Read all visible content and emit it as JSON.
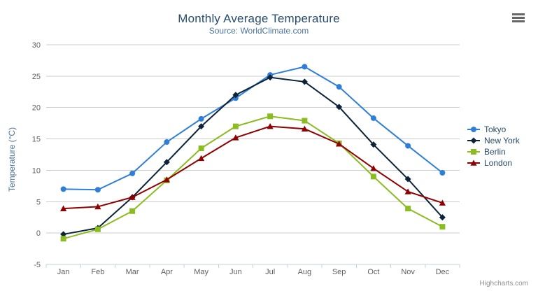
{
  "header": {
    "title": "Monthly Average Temperature",
    "subtitle": "Source: WorldClimate.com"
  },
  "export_menu": {
    "icon": "hamburger-icon"
  },
  "credits": {
    "label": "Highcharts.com"
  },
  "chart_data": {
    "type": "line",
    "title": "Monthly Average Temperature",
    "subtitle": "Source: WorldClimate.com",
    "categories": [
      "Jan",
      "Feb",
      "Mar",
      "Apr",
      "May",
      "Jun",
      "Jul",
      "Aug",
      "Sep",
      "Oct",
      "Nov",
      "Dec"
    ],
    "xlabel": "",
    "ylabel": "Temperature (°C)",
    "ylim": [
      -5,
      30
    ],
    "ytick_step": 5,
    "grid": true,
    "legend_position": "right",
    "colors": {
      "grid_line": "#cccccc",
      "axis_line": "#c0d0e0",
      "axis_label": "#606060",
      "title": "#274b6d",
      "subtitle": "#4d759e",
      "axis_title": "#4d759e",
      "legend_text": "#274b6d",
      "credits_text": "#909090"
    },
    "series": [
      {
        "name": "Tokyo",
        "color": "#2f7ed8",
        "marker": "circle",
        "values": [
          7.0,
          6.9,
          9.5,
          14.5,
          18.2,
          21.5,
          25.2,
          26.5,
          23.3,
          18.3,
          13.9,
          9.6
        ]
      },
      {
        "name": "New York",
        "color": "#0d233a",
        "marker": "diamond",
        "values": [
          -0.2,
          0.8,
          5.7,
          11.3,
          17.0,
          22.0,
          24.8,
          24.1,
          20.1,
          14.1,
          8.6,
          2.5
        ]
      },
      {
        "name": "Berlin",
        "color": "#8bbc21",
        "marker": "square",
        "values": [
          -0.9,
          0.6,
          3.5,
          8.4,
          13.5,
          17.0,
          18.6,
          17.9,
          14.3,
          9.0,
          3.9,
          1.0
        ]
      },
      {
        "name": "London",
        "color": "#910000",
        "marker": "triangle",
        "values": [
          3.9,
          4.2,
          5.7,
          8.5,
          11.9,
          15.2,
          17.0,
          16.6,
          14.2,
          10.3,
          6.6,
          4.8
        ]
      }
    ]
  }
}
